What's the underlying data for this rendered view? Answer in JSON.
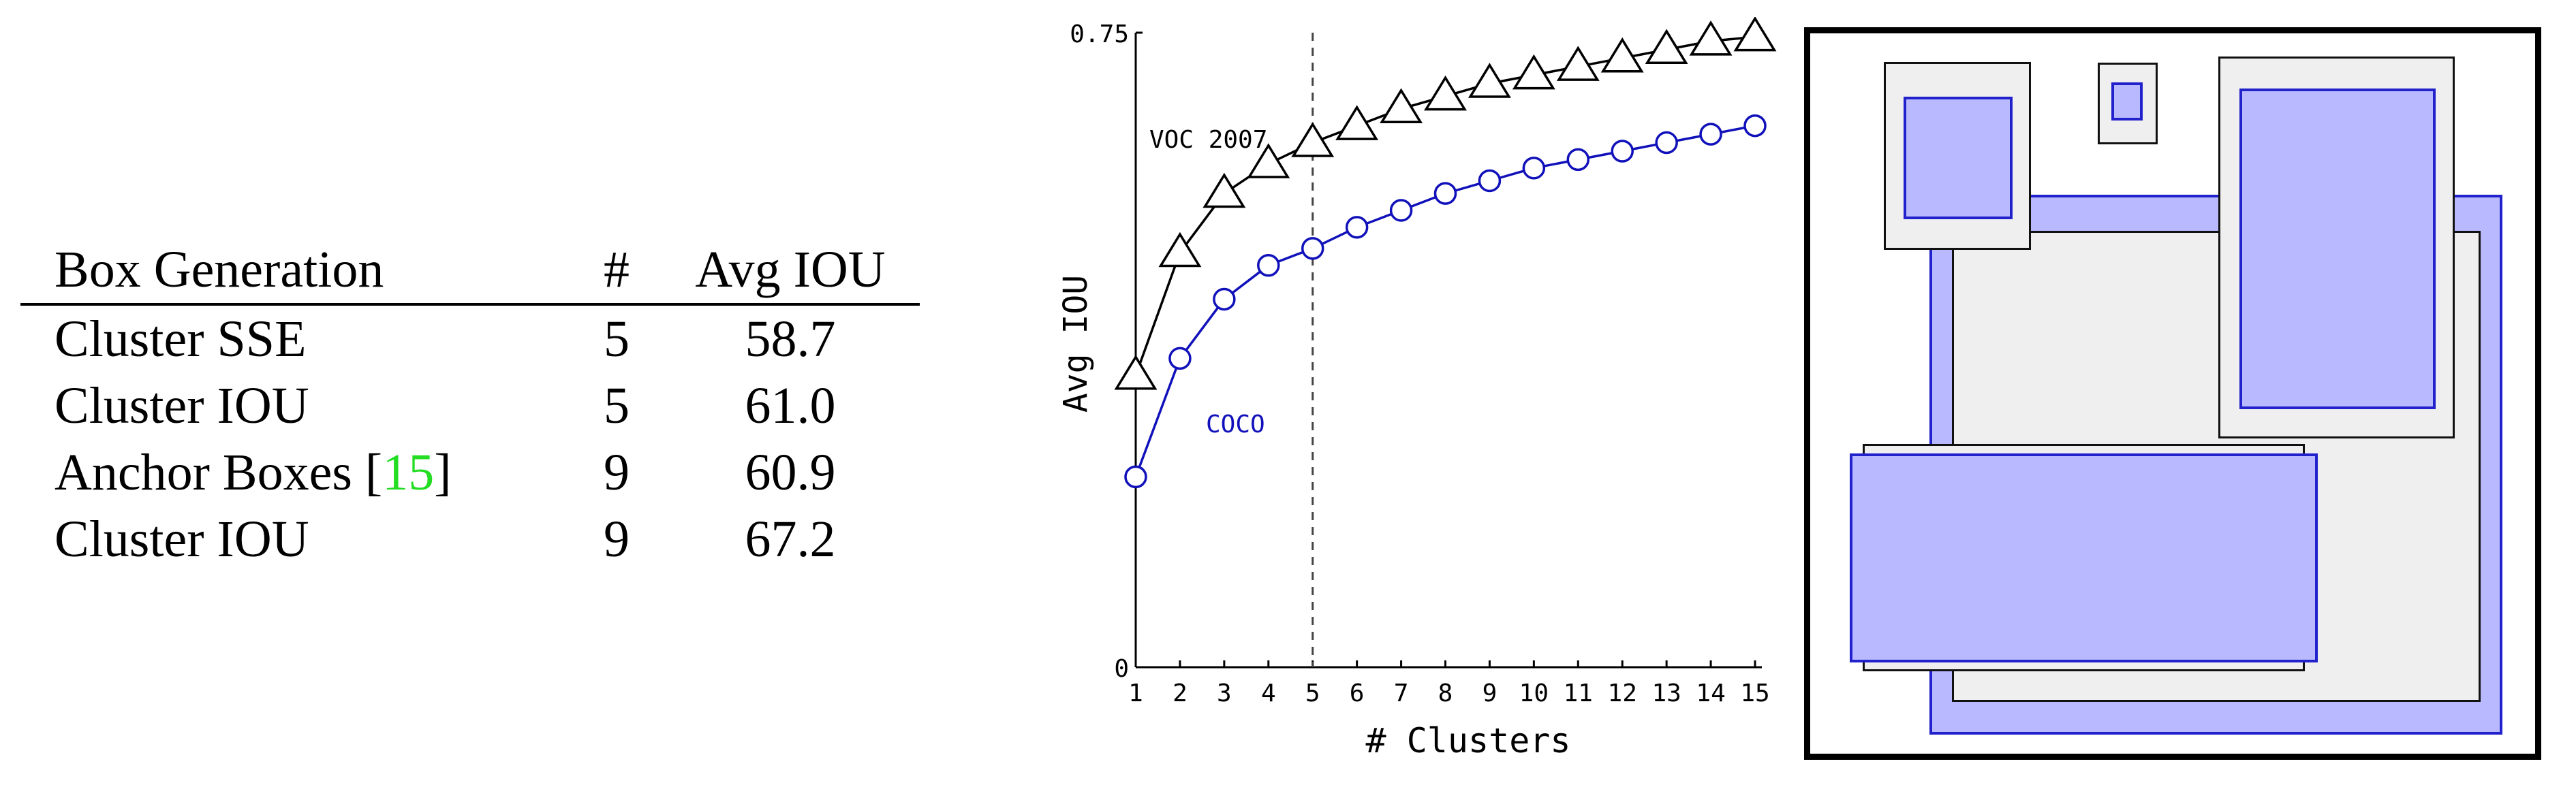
{
  "table": {
    "headers": [
      "Box Generation",
      "#",
      "Avg IOU"
    ],
    "rows": [
      {
        "method": "Cluster SSE",
        "cite": "",
        "k": "5",
        "iou": "58.7"
      },
      {
        "method": "Cluster IOU",
        "cite": "",
        "k": "5",
        "iou": "61.0"
      },
      {
        "method": "Anchor Boxes [",
        "cite": "15",
        "cite_close": "]",
        "k": "9",
        "iou": "60.9"
      },
      {
        "method": "Cluster IOU",
        "cite": "",
        "k": "9",
        "iou": "67.2"
      }
    ]
  },
  "chart_data": {
    "type": "line",
    "xlabel": "# Clusters",
    "ylabel": "Avg IOU",
    "xlim": [
      1,
      15
    ],
    "ylim": [
      0,
      0.75
    ],
    "x_ticks": [
      "1",
      "2",
      "3",
      "4",
      "5",
      "6",
      "7",
      "8",
      "9",
      "10",
      "11",
      "12",
      "13",
      "14",
      "15"
    ],
    "y_ticks": [
      "0",
      "0.75"
    ],
    "vline_x": 5,
    "x": [
      1,
      2,
      3,
      4,
      5,
      6,
      7,
      8,
      9,
      10,
      11,
      12,
      13,
      14,
      15
    ],
    "series": [
      {
        "name": "VOC 2007",
        "marker": "triangle",
        "color": "#000000",
        "values": [
          0.345,
          0.49,
          0.56,
          0.595,
          0.62,
          0.64,
          0.66,
          0.675,
          0.69,
          0.7,
          0.71,
          0.72,
          0.73,
          0.74,
          0.745
        ]
      },
      {
        "name": "COCO",
        "marker": "circle",
        "color": "#1111bb",
        "values": [
          0.225,
          0.365,
          0.435,
          0.475,
          0.495,
          0.52,
          0.54,
          0.56,
          0.575,
          0.59,
          0.6,
          0.61,
          0.62,
          0.63,
          0.64
        ]
      }
    ]
  },
  "diagram": {
    "colors": {
      "grey_fill": "#efefef",
      "blue_fill": "#b9b9ff",
      "blue_stroke": "#2222cc"
    }
  }
}
